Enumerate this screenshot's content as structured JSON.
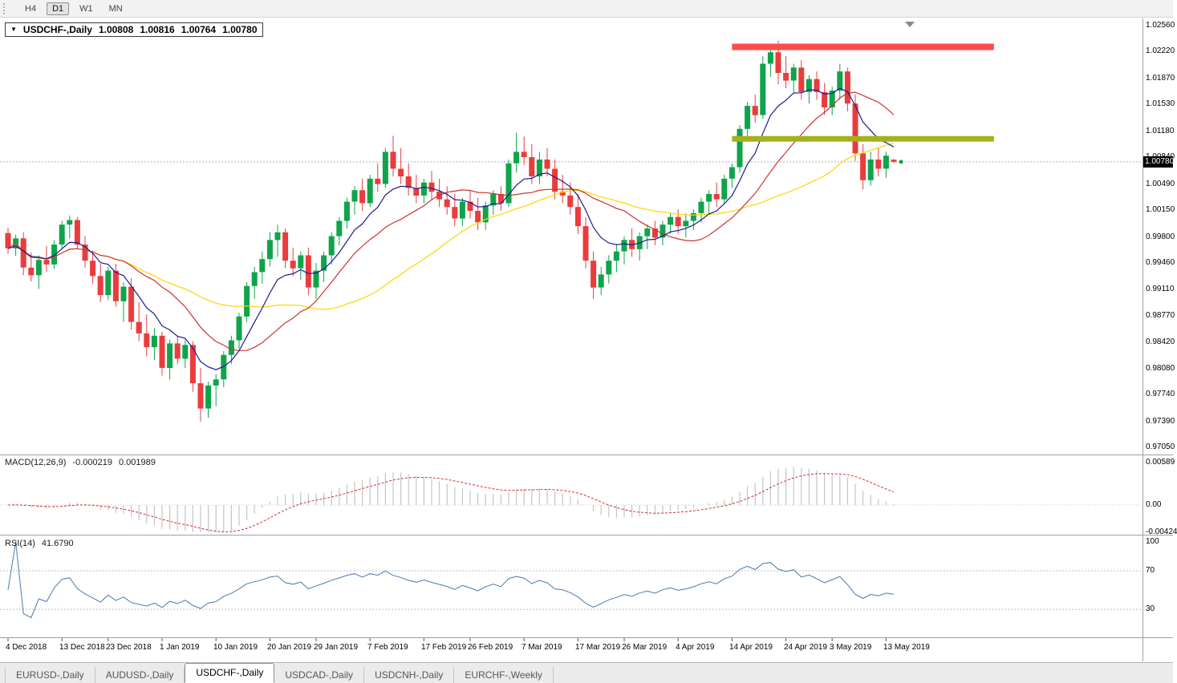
{
  "toolbar": {
    "timeframes": [
      {
        "label": "H4",
        "active": false
      },
      {
        "label": "D1",
        "active": true
      },
      {
        "label": "W1",
        "active": false
      },
      {
        "label": "MN",
        "active": false
      }
    ]
  },
  "title_box": {
    "symbol_period": "USDCHF-,Daily",
    "open": "1.00808",
    "high": "1.00816",
    "low": "1.00764",
    "close": "1.00780"
  },
  "current_price_label": "1.00780",
  "price_scale_labels": [
    "1.02560",
    "1.02220",
    "1.01870",
    "1.01530",
    "1.01180",
    "1.00840",
    "1.00490",
    "1.00150",
    "0.99800",
    "0.99460",
    "0.99110",
    "0.98770",
    "0.98420",
    "0.98080",
    "0.97740",
    "0.97390",
    "0.97050"
  ],
  "time_axis": [
    {
      "label": "4 Dec 2018",
      "index": 0
    },
    {
      "label": "13 Dec 2018",
      "index": 7
    },
    {
      "label": "23 Dec 2018",
      "index": 13
    },
    {
      "label": "1 Jan 2019",
      "index": 20
    },
    {
      "label": "10 Jan 2019",
      "index": 27
    },
    {
      "label": "20 Jan 2019",
      "index": 34
    },
    {
      "label": "29 Jan 2019",
      "index": 40
    },
    {
      "label": "7 Feb 2019",
      "index": 47
    },
    {
      "label": "17 Feb 2019",
      "index": 54
    },
    {
      "label": "26 Feb 2019",
      "index": 60
    },
    {
      "label": "7 Mar 2019",
      "index": 67
    },
    {
      "label": "17 Mar 2019",
      "index": 74
    },
    {
      "label": "26 Mar 2019",
      "index": 80
    },
    {
      "label": "4 Apr 2019",
      "index": 87
    },
    {
      "label": "14 Apr 2019",
      "index": 94
    },
    {
      "label": "24 Apr 2019",
      "index": 101
    },
    {
      "label": "3 May 2019",
      "index": 107
    },
    {
      "label": "13 May 2019",
      "index": 114
    }
  ],
  "indicators": {
    "macd": {
      "name": "MACD(12,26,9)",
      "value_main": "-0.000219",
      "value_signal": "0.001989",
      "scale": [
        "0.00589",
        "0.00",
        "-0.00424"
      ]
    },
    "rsi": {
      "name": "RSI(14)",
      "value": "41.6790",
      "scale": [
        "100",
        "70",
        "30"
      ]
    }
  },
  "tabs": [
    {
      "label": "EURUSD-,Daily",
      "active": false
    },
    {
      "label": "AUDUSD-,Daily",
      "active": false
    },
    {
      "label": "USDCHF-,Daily",
      "active": true
    },
    {
      "label": "USDCAD-,Daily",
      "active": false
    },
    {
      "label": "USDCNH-,Daily",
      "active": false
    },
    {
      "label": "EURCHF-,Weekly",
      "active": false
    }
  ],
  "colors": {
    "bull": "#0fa44a",
    "bear": "#ea3c3c",
    "ma_fast": "#1b1b8f",
    "ma_mid": "#cc3333",
    "ma_slow": "#ffd400",
    "macd_hist": "#c4c4c4",
    "macd_signal": "#d32f2f",
    "rsi_line": "#4a78b0",
    "level_dotted": "#bdbdbd",
    "resistance_band": "#fb4b4b",
    "support_band": "#a4b11c",
    "price_tag_bg": "#000000",
    "price_tag_text": "#ffffff"
  },
  "chart_data": {
    "type": "candlestick",
    "symbol": "USDCHF-",
    "timeframe": "Daily",
    "ohlc_current": {
      "open": 1.00808,
      "high": 1.00816,
      "low": 1.00764,
      "close": 1.0078
    },
    "y_axis_range": [
      0.9697,
      1.0262
    ],
    "moving_averages": [
      {
        "type": "ema",
        "period": 8
      },
      {
        "type": "sma",
        "period": 16
      },
      {
        "type": "sma",
        "period": 32
      }
    ],
    "horizontal_levels": [
      {
        "name": "resistance",
        "price": 1.0228,
        "from_index": 94,
        "to_index": 128
      },
      {
        "name": "support",
        "price": 1.0108,
        "from_index": 94,
        "to_index": 128
      }
    ],
    "macd_settings": {
      "fast": 12,
      "slow": 26,
      "signal": 9,
      "scale_max": 0.00589,
      "scale_min": -0.00424
    },
    "rsi_settings": {
      "period": 14,
      "levels": [
        70,
        30
      ]
    },
    "candles": [
      [
        0.9985,
        0.9992,
        0.9958,
        0.9965
      ],
      [
        0.9965,
        0.9983,
        0.9955,
        0.9978
      ],
      [
        0.9978,
        0.9986,
        0.993,
        0.994
      ],
      [
        0.994,
        0.996,
        0.9922,
        0.993
      ],
      [
        0.993,
        0.9956,
        0.9912,
        0.995
      ],
      [
        0.995,
        0.9968,
        0.9934,
        0.9944
      ],
      [
        0.9944,
        0.9976,
        0.9938,
        0.997
      ],
      [
        0.997,
        1.0001,
        0.9964,
        0.9996
      ],
      [
        0.9996,
        1.0008,
        0.9978,
        1.0002
      ],
      [
        1.0002,
        1.0006,
        0.9964,
        0.997
      ],
      [
        0.997,
        0.9981,
        0.994,
        0.9949
      ],
      [
        0.9949,
        0.9962,
        0.9919,
        0.9929
      ],
      [
        0.9929,
        0.9945,
        0.9895,
        0.9904
      ],
      [
        0.9904,
        0.9941,
        0.9898,
        0.9936
      ],
      [
        0.9936,
        0.9945,
        0.9889,
        0.9896
      ],
      [
        0.9896,
        0.9921,
        0.9869,
        0.9915
      ],
      [
        0.9915,
        0.9926,
        0.9859,
        0.9869
      ],
      [
        0.9869,
        0.9895,
        0.9844,
        0.9854
      ],
      [
        0.9854,
        0.9879,
        0.9824,
        0.9836
      ],
      [
        0.9836,
        0.9861,
        0.9819,
        0.9851
      ],
      [
        0.9851,
        0.9856,
        0.9799,
        0.9809
      ],
      [
        0.9809,
        0.9846,
        0.9794,
        0.9841
      ],
      [
        0.9841,
        0.9851,
        0.9814,
        0.9821
      ],
      [
        0.9821,
        0.9846,
        0.9809,
        0.9839
      ],
      [
        0.9839,
        0.9844,
        0.9778,
        0.9789
      ],
      [
        0.9789,
        0.9809,
        0.9739,
        0.9756
      ],
      [
        0.9756,
        0.9791,
        0.9744,
        0.9786
      ],
      [
        0.9786,
        0.9801,
        0.9759,
        0.9794
      ],
      [
        0.9794,
        0.9831,
        0.9784,
        0.9826
      ],
      [
        0.9826,
        0.9851,
        0.9814,
        0.9845
      ],
      [
        0.9845,
        0.9881,
        0.9834,
        0.9876
      ],
      [
        0.9876,
        0.9921,
        0.9869,
        0.9916
      ],
      [
        0.9916,
        0.9941,
        0.9899,
        0.9934
      ],
      [
        0.9934,
        0.9961,
        0.9919,
        0.9951
      ],
      [
        0.9951,
        0.9986,
        0.9941,
        0.9976
      ],
      [
        0.9976,
        0.9996,
        0.9954,
        0.9986
      ],
      [
        0.9986,
        0.9991,
        0.9939,
        0.9949
      ],
      [
        0.9949,
        0.9966,
        0.9929,
        0.9939
      ],
      [
        0.9939,
        0.9961,
        0.9924,
        0.9956
      ],
      [
        0.9956,
        0.9966,
        0.9904,
        0.9914
      ],
      [
        0.9914,
        0.9946,
        0.9899,
        0.9936
      ],
      [
        0.9936,
        0.9961,
        0.9921,
        0.9956
      ],
      [
        0.9956,
        0.9986,
        0.9944,
        0.9981
      ],
      [
        0.9981,
        1.0006,
        0.9969,
        1.0001
      ],
      [
        1.0001,
        1.0031,
        0.9991,
        1.0026
      ],
      [
        1.0026,
        1.0046,
        1.0009,
        1.0041
      ],
      [
        1.0041,
        1.0056,
        1.0014,
        1.0024
      ],
      [
        1.0024,
        1.0061,
        1.0019,
        1.0056
      ],
      [
        1.0056,
        1.0076,
        1.0039,
        1.0049
      ],
      [
        1.0049,
        1.0096,
        1.0044,
        1.0091
      ],
      [
        1.0091,
        1.0112,
        1.0059,
        1.0069
      ],
      [
        1.0069,
        1.0096,
        1.0049,
        1.0059
      ],
      [
        1.0059,
        1.0076,
        1.0034,
        1.0044
      ],
      [
        1.0044,
        1.0061,
        1.0024,
        1.0034
      ],
      [
        1.0034,
        1.0056,
        1.0024,
        1.0051
      ],
      [
        1.0051,
        1.0066,
        1.0029,
        1.0039
      ],
      [
        1.0039,
        1.0056,
        1.0019,
        1.0029
      ],
      [
        1.0029,
        1.0046,
        1.0009,
        1.0019
      ],
      [
        1.0019,
        1.0036,
        0.9994,
        1.0004
      ],
      [
        1.0004,
        1.0031,
        0.9994,
        1.0026
      ],
      [
        1.0026,
        1.0041,
        1.0004,
        1.0014
      ],
      [
        1.0014,
        1.0031,
        0.9989,
        0.9999
      ],
      [
        0.9999,
        1.0026,
        0.9989,
        1.0021
      ],
      [
        1.0021,
        1.0041,
        1.0009,
        1.0036
      ],
      [
        1.0036,
        1.0046,
        1.0014,
        1.0024
      ],
      [
        1.0024,
        1.0081,
        1.0019,
        1.0076
      ],
      [
        1.0076,
        1.0116,
        1.0064,
        1.0091
      ],
      [
        1.0091,
        1.0111,
        1.0074,
        1.0084
      ],
      [
        1.0084,
        1.0101,
        1.0049,
        1.0059
      ],
      [
        1.0059,
        1.0091,
        1.0049,
        1.0081
      ],
      [
        1.0081,
        1.0096,
        1.0059,
        1.0069
      ],
      [
        1.0069,
        1.0081,
        1.0029,
        1.0039
      ],
      [
        1.0039,
        1.0061,
        1.0024,
        1.0034
      ],
      [
        1.0034,
        1.0051,
        1.0009,
        1.0019
      ],
      [
        1.0019,
        1.0036,
        0.9984,
        0.9994
      ],
      [
        0.9994,
        1.0006,
        0.9939,
        0.9949
      ],
      [
        0.9949,
        0.9961,
        0.9899,
        0.9914
      ],
      [
        0.9914,
        0.9941,
        0.9904,
        0.9931
      ],
      [
        0.9931,
        0.9956,
        0.9919,
        0.9949
      ],
      [
        0.9949,
        0.9971,
        0.9934,
        0.9961
      ],
      [
        0.9961,
        0.9981,
        0.9944,
        0.9976
      ],
      [
        0.9976,
        0.9991,
        0.9954,
        0.9964
      ],
      [
        0.9964,
        0.9986,
        0.9949,
        0.9981
      ],
      [
        0.9981,
        0.9996,
        0.9964,
        0.9991
      ],
      [
        0.9991,
        1.0001,
        0.9969,
        0.9979
      ],
      [
        0.9979,
        1.0001,
        0.9969,
        0.9996
      ],
      [
        0.9996,
        1.0011,
        0.9984,
        1.0006
      ],
      [
        1.0006,
        1.0016,
        0.9984,
        0.9994
      ],
      [
        0.9994,
        1.0011,
        0.9979,
        1.0001
      ],
      [
        1.0001,
        1.0016,
        0.9989,
        1.0011
      ],
      [
        1.0011,
        1.0031,
        0.9999,
        1.0026
      ],
      [
        1.0026,
        1.0041,
        1.0009,
        1.0036
      ],
      [
        1.0036,
        1.0051,
        1.0019,
        1.0029
      ],
      [
        1.0029,
        1.0061,
        1.0024,
        1.0056
      ],
      [
        1.0056,
        1.0076,
        1.0044,
        1.0071
      ],
      [
        1.0071,
        1.0126,
        1.0064,
        1.0121
      ],
      [
        1.0121,
        1.0156,
        1.0109,
        1.0151
      ],
      [
        1.0151,
        1.0166,
        1.0129,
        1.0139
      ],
      [
        1.0139,
        1.0216,
        1.0134,
        1.0206
      ],
      [
        1.0206,
        1.0231,
        1.0189,
        1.0221
      ],
      [
        1.0221,
        1.0236,
        1.0179,
        1.0194
      ],
      [
        1.0194,
        1.0216,
        1.0174,
        1.0184
      ],
      [
        1.0184,
        1.0206,
        1.0169,
        1.0201
      ],
      [
        1.0201,
        1.0211,
        1.0159,
        1.0169
      ],
      [
        1.0169,
        1.0191,
        1.0154,
        1.0186
      ],
      [
        1.0186,
        1.0196,
        1.0159,
        1.0169
      ],
      [
        1.0169,
        1.0181,
        1.0139,
        1.0149
      ],
      [
        1.0149,
        1.0176,
        1.0139,
        1.0171
      ],
      [
        1.0171,
        1.0206,
        1.0159,
        1.0196
      ],
      [
        1.0196,
        1.0201,
        1.0144,
        1.0154
      ],
      [
        1.0154,
        1.0166,
        1.0079,
        1.0089
      ],
      [
        1.0089,
        1.0101,
        1.0042,
        1.0054
      ],
      [
        1.0054,
        1.0091,
        1.0047,
        1.0081
      ],
      [
        1.0081,
        1.0096,
        1.0059,
        1.0069
      ],
      [
        1.0069,
        1.0091,
        1.0057,
        1.0086
      ],
      [
        1.00808,
        1.00816,
        1.00764,
        1.0078
      ]
    ]
  }
}
